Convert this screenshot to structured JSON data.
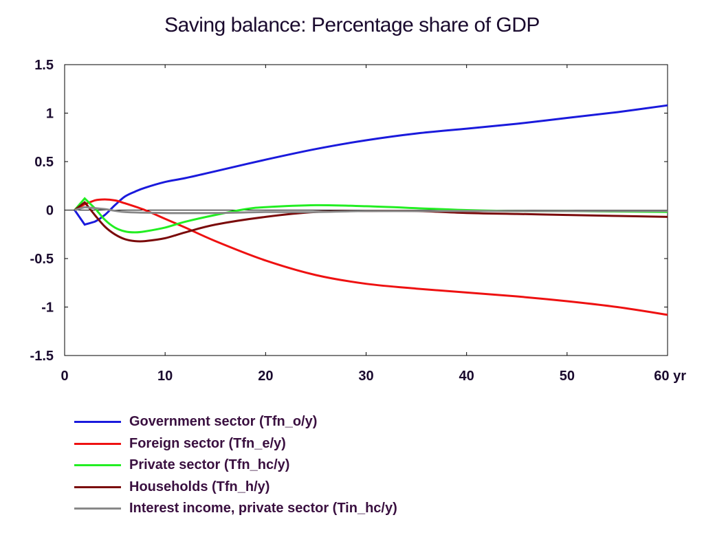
{
  "chart_data": {
    "type": "line",
    "title": "Saving balance: Percentage share of GDP",
    "xlabel": "",
    "ylabel": "",
    "xlim": [
      0,
      60
    ],
    "ylim": [
      -1.5,
      1.5
    ],
    "x_ticks": [
      "0",
      "10",
      "20",
      "30",
      "40",
      "50",
      "60 yr"
    ],
    "y_ticks": [
      "1.5",
      "1",
      "0.5",
      "0",
      "-0.5",
      "-1",
      "-1.5"
    ],
    "x_tick_values": [
      0,
      10,
      20,
      30,
      40,
      50,
      60
    ],
    "y_tick_values": [
      1.5,
      1,
      0.5,
      0,
      -0.5,
      -1,
      -1.5
    ],
    "grid": false,
    "zero_line": true,
    "legend_position": "bottom",
    "series": [
      {
        "name": "Government sector (Tfn_o/y)",
        "color": "#1a1adc",
        "points": [
          [
            1,
            0
          ],
          [
            2,
            -0.15
          ],
          [
            3,
            -0.12
          ],
          [
            4,
            -0.05
          ],
          [
            5,
            0.05
          ],
          [
            6,
            0.14
          ],
          [
            7,
            0.19
          ],
          [
            8,
            0.23
          ],
          [
            10,
            0.29
          ],
          [
            12,
            0.33
          ],
          [
            15,
            0.4
          ],
          [
            20,
            0.52
          ],
          [
            25,
            0.63
          ],
          [
            30,
            0.72
          ],
          [
            35,
            0.79
          ],
          [
            40,
            0.84
          ],
          [
            45,
            0.89
          ],
          [
            50,
            0.95
          ],
          [
            55,
            1.01
          ],
          [
            60,
            1.08
          ]
        ]
      },
      {
        "name": "Foreign sector (Tfn_e/y)",
        "color": "#ee1111",
        "points": [
          [
            1,
            0
          ],
          [
            2,
            0.06
          ],
          [
            3,
            0.1
          ],
          [
            4,
            0.11
          ],
          [
            5,
            0.1
          ],
          [
            6,
            0.07
          ],
          [
            8,
            0.0
          ],
          [
            10,
            -0.09
          ],
          [
            12,
            -0.18
          ],
          [
            15,
            -0.32
          ],
          [
            20,
            -0.52
          ],
          [
            25,
            -0.67
          ],
          [
            30,
            -0.76
          ],
          [
            35,
            -0.81
          ],
          [
            40,
            -0.85
          ],
          [
            45,
            -0.89
          ],
          [
            50,
            -0.94
          ],
          [
            55,
            -1.0
          ],
          [
            60,
            -1.08
          ]
        ]
      },
      {
        "name": "Private sector (Tfn_hc/y)",
        "color": "#22ee22",
        "points": [
          [
            1,
            0
          ],
          [
            2,
            0.12
          ],
          [
            3,
            0.02
          ],
          [
            4,
            -0.1
          ],
          [
            5,
            -0.18
          ],
          [
            6,
            -0.22
          ],
          [
            7,
            -0.23
          ],
          [
            8,
            -0.22
          ],
          [
            10,
            -0.18
          ],
          [
            12,
            -0.12
          ],
          [
            15,
            -0.05
          ],
          [
            18,
            0.01
          ],
          [
            20,
            0.03
          ],
          [
            25,
            0.05
          ],
          [
            30,
            0.04
          ],
          [
            35,
            0.02
          ],
          [
            40,
            0.0
          ],
          [
            45,
            -0.01
          ],
          [
            50,
            -0.01
          ],
          [
            60,
            -0.02
          ]
        ]
      },
      {
        "name": "Households (Tfn_h/y)",
        "color": "#7a0a0a",
        "points": [
          [
            1,
            0
          ],
          [
            2,
            0.08
          ],
          [
            3,
            -0.05
          ],
          [
            4,
            -0.17
          ],
          [
            5,
            -0.25
          ],
          [
            6,
            -0.3
          ],
          [
            7,
            -0.32
          ],
          [
            8,
            -0.32
          ],
          [
            10,
            -0.29
          ],
          [
            12,
            -0.23
          ],
          [
            15,
            -0.15
          ],
          [
            20,
            -0.07
          ],
          [
            25,
            -0.02
          ],
          [
            30,
            -0.01
          ],
          [
            35,
            -0.01
          ],
          [
            40,
            -0.03
          ],
          [
            45,
            -0.04
          ],
          [
            50,
            -0.05
          ],
          [
            55,
            -0.06
          ],
          [
            60,
            -0.07
          ]
        ]
      },
      {
        "name": "Interest income, private sector (Tin_hc/y)",
        "color": "#888888",
        "points": [
          [
            1,
            0
          ],
          [
            2,
            0.03
          ],
          [
            4,
            0.01
          ],
          [
            6,
            -0.02
          ],
          [
            10,
            -0.03
          ],
          [
            15,
            -0.03
          ],
          [
            20,
            -0.02
          ],
          [
            25,
            -0.02
          ],
          [
            30,
            -0.01
          ],
          [
            40,
            -0.01
          ],
          [
            50,
            -0.01
          ],
          [
            60,
            -0.01
          ]
        ]
      }
    ]
  }
}
